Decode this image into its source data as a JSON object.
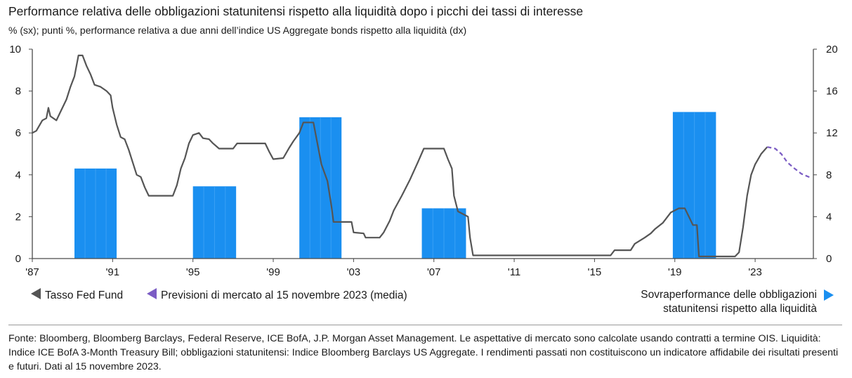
{
  "title": "Performance relativa delle obbligazioni statunitensi rispetto alla liquidità dopo i picchi dei tassi di interesse",
  "subtitle": "% (sx); punti %, performance relativa a due anni dell’indice US Aggregate bonds rispetto alla liquidità (dx)",
  "legend": {
    "fed": "Tasso Fed Fund",
    "forecast": "Previsioni di mercato al 15 novembre 2023 (media)",
    "bars_line1": "Sovraperformance delle obbligazioni",
    "bars_line2": "statunitensi rispetto alla liquidità"
  },
  "source": "Fonte: Bloomberg, Bloomberg Barclays, Federal Reserve, ICE BofA, J.P. Morgan Asset Management. Le aspettative di mercato sono calcolate usando contratti a termine OIS. Liquidità: Indice ICE BofA 3-Month Treasury Bill; obbligazioni statunitensi: Indice Bloomberg Barclays US Aggregate. I rendimenti passati non costituiscono un indicatore affidabile dei risultati presenti e futuri. Dati al 15 novembre 2023.",
  "colors": {
    "fed_line": "#555555",
    "forecast_line": "#7b5cc4",
    "bars": "#1a8ff0",
    "axis": "#4a4a4a"
  },
  "chart_data": {
    "type": "line",
    "x_axis": {
      "range": [
        1987,
        2025.9
      ],
      "ticks": [
        1987,
        1991,
        1995,
        1999,
        2003,
        2007,
        2011,
        2015,
        2019,
        2023
      ],
      "tick_labels": [
        "'87",
        "'91",
        "'95",
        "'99",
        "'03",
        "'07",
        "'11",
        "'15",
        "'19",
        "'23"
      ]
    },
    "y_left": {
      "range": [
        0,
        10
      ],
      "ticks": [
        0,
        2,
        4,
        6,
        8,
        10
      ]
    },
    "y_right": {
      "range": [
        0,
        20
      ],
      "ticks": [
        0,
        4,
        8,
        12,
        16,
        20
      ]
    },
    "series": [
      {
        "name": "Tasso Fed Fund",
        "axis": "left",
        "style": "solid",
        "points": [
          [
            1987.0,
            6.0
          ],
          [
            1987.2,
            6.1
          ],
          [
            1987.5,
            6.6
          ],
          [
            1987.7,
            6.7
          ],
          [
            1987.8,
            7.2
          ],
          [
            1987.9,
            6.8
          ],
          [
            1988.2,
            6.6
          ],
          [
            1988.4,
            7.0
          ],
          [
            1988.7,
            7.6
          ],
          [
            1988.9,
            8.2
          ],
          [
            1989.1,
            8.7
          ],
          [
            1989.3,
            9.7
          ],
          [
            1989.5,
            9.7
          ],
          [
            1989.7,
            9.2
          ],
          [
            1989.9,
            8.8
          ],
          [
            1990.1,
            8.3
          ],
          [
            1990.4,
            8.2
          ],
          [
            1990.7,
            8.0
          ],
          [
            1990.9,
            7.8
          ],
          [
            1991.0,
            7.2
          ],
          [
            1991.2,
            6.4
          ],
          [
            1991.4,
            5.8
          ],
          [
            1991.6,
            5.7
          ],
          [
            1991.8,
            5.2
          ],
          [
            1992.0,
            4.6
          ],
          [
            1992.2,
            4.0
          ],
          [
            1992.4,
            3.9
          ],
          [
            1992.6,
            3.4
          ],
          [
            1992.8,
            3.0
          ],
          [
            1993.5,
            3.0
          ],
          [
            1994.0,
            3.0
          ],
          [
            1994.2,
            3.5
          ],
          [
            1994.4,
            4.3
          ],
          [
            1994.6,
            4.8
          ],
          [
            1994.8,
            5.5
          ],
          [
            1995.0,
            5.9
          ],
          [
            1995.3,
            6.0
          ],
          [
            1995.5,
            5.75
          ],
          [
            1995.8,
            5.7
          ],
          [
            1996.0,
            5.5
          ],
          [
            1996.3,
            5.25
          ],
          [
            1997.0,
            5.25
          ],
          [
            1997.2,
            5.5
          ],
          [
            1998.0,
            5.5
          ],
          [
            1998.6,
            5.5
          ],
          [
            1998.8,
            5.1
          ],
          [
            1999.0,
            4.75
          ],
          [
            1999.5,
            4.8
          ],
          [
            1999.8,
            5.3
          ],
          [
            2000.0,
            5.6
          ],
          [
            2000.3,
            6.0
          ],
          [
            2000.5,
            6.5
          ],
          [
            2001.0,
            6.5
          ],
          [
            2001.2,
            5.5
          ],
          [
            2001.4,
            4.5
          ],
          [
            2001.7,
            3.7
          ],
          [
            2001.9,
            2.5
          ],
          [
            2002.0,
            1.75
          ],
          [
            2002.5,
            1.75
          ],
          [
            2002.9,
            1.75
          ],
          [
            2003.0,
            1.25
          ],
          [
            2003.5,
            1.2
          ],
          [
            2003.6,
            1.0
          ],
          [
            2004.3,
            1.0
          ],
          [
            2004.5,
            1.25
          ],
          [
            2004.8,
            1.8
          ],
          [
            2005.0,
            2.3
          ],
          [
            2005.4,
            3.0
          ],
          [
            2005.8,
            3.75
          ],
          [
            2006.2,
            4.6
          ],
          [
            2006.5,
            5.25
          ],
          [
            2007.5,
            5.25
          ],
          [
            2007.7,
            4.75
          ],
          [
            2007.9,
            4.3
          ],
          [
            2008.0,
            3.0
          ],
          [
            2008.2,
            2.25
          ],
          [
            2008.7,
            2.0
          ],
          [
            2008.8,
            1.0
          ],
          [
            2008.95,
            0.15
          ],
          [
            2015.8,
            0.15
          ],
          [
            2016.0,
            0.4
          ],
          [
            2016.8,
            0.4
          ],
          [
            2017.0,
            0.7
          ],
          [
            2017.5,
            1.0
          ],
          [
            2017.8,
            1.2
          ],
          [
            2018.0,
            1.4
          ],
          [
            2018.4,
            1.7
          ],
          [
            2018.8,
            2.2
          ],
          [
            2019.2,
            2.4
          ],
          [
            2019.5,
            2.4
          ],
          [
            2019.7,
            2.0
          ],
          [
            2019.9,
            1.6
          ],
          [
            2020.1,
            1.6
          ],
          [
            2020.2,
            0.1
          ],
          [
            2022.0,
            0.1
          ],
          [
            2022.2,
            0.3
          ],
          [
            2022.4,
            1.5
          ],
          [
            2022.6,
            3.0
          ],
          [
            2022.8,
            4.0
          ],
          [
            2023.0,
            4.5
          ],
          [
            2023.3,
            5.0
          ],
          [
            2023.6,
            5.33
          ]
        ]
      },
      {
        "name": "Previsioni di mercato al 15 novembre 2023 (media)",
        "axis": "left",
        "style": "dashed",
        "points": [
          [
            2023.6,
            5.33
          ],
          [
            2024.0,
            5.25
          ],
          [
            2024.3,
            5.0
          ],
          [
            2024.6,
            4.6
          ],
          [
            2024.9,
            4.35
          ],
          [
            2025.3,
            4.05
          ],
          [
            2025.8,
            3.85
          ]
        ]
      }
    ],
    "bars": {
      "name": "Sovraperformance delle obbligazioni statunitensi rispetto alla liquidità",
      "axis": "right",
      "items": [
        {
          "start": 1989.1,
          "end": 1991.2,
          "value": 8.6
        },
        {
          "start": 1995.0,
          "end": 1997.15,
          "value": 6.9
        },
        {
          "start": 2000.3,
          "end": 2002.4,
          "value": 13.5
        },
        {
          "start": 2006.4,
          "end": 2008.6,
          "value": 4.8
        },
        {
          "start": 2018.9,
          "end": 2021.05,
          "value": 14.0
        }
      ]
    }
  }
}
